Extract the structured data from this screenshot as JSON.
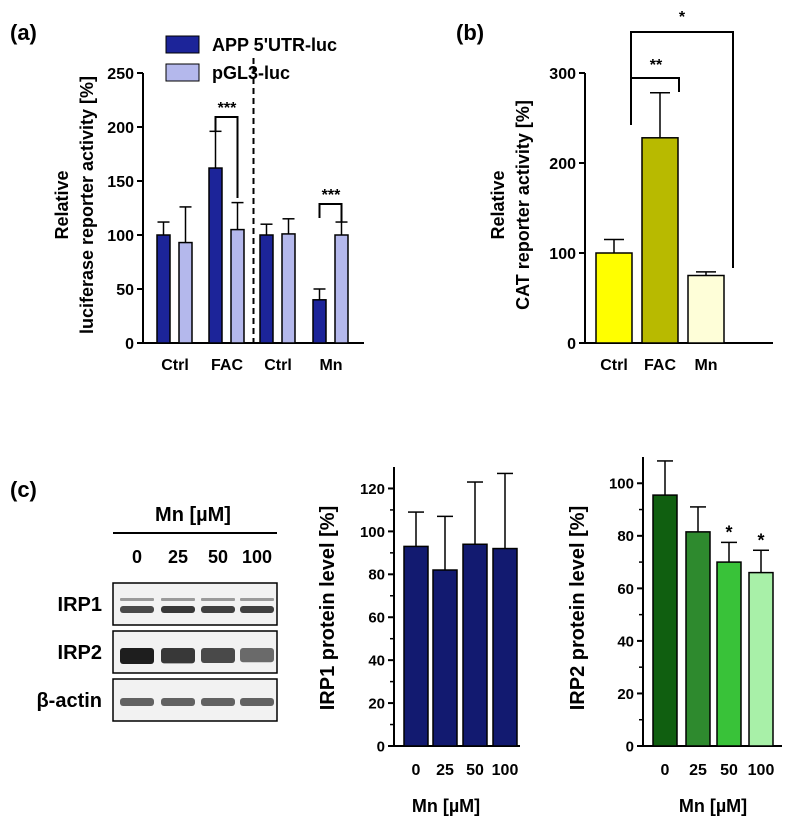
{
  "panel_labels": {
    "a": "(a)",
    "b": "(b)",
    "c": "(c)"
  },
  "colors": {
    "app": "#1c2499",
    "pgl3": "#b4b8ec",
    "ctrl_yellow": "#ffff00",
    "fac_olive": "#b8ba00",
    "mn_cream": "#fefed8",
    "irp1_navy": "#121a70",
    "irp2_greens": [
      "#105f10",
      "#2e8a2e",
      "#39c239",
      "#a8f0a8"
    ]
  },
  "western_blot": {
    "header": "Mn [µM]",
    "lanes": [
      "0",
      "25",
      "50",
      "100"
    ],
    "rows": [
      {
        "label": "IRP1",
        "intensity": [
          0.75,
          0.85,
          0.8,
          0.8
        ]
      },
      {
        "label": "IRP2",
        "intensity": [
          1.0,
          0.85,
          0.75,
          0.55
        ]
      },
      {
        "label": "β-actin",
        "intensity": [
          0.6,
          0.6,
          0.6,
          0.6
        ]
      }
    ]
  },
  "chart_data": [
    {
      "id": "a",
      "type": "bar",
      "ylabel_line1": "Relative",
      "ylabel_line2": "luciferase reporter activity [%]",
      "ylim": [
        0,
        250
      ],
      "yticks": [
        0,
        50,
        100,
        150,
        200,
        250
      ],
      "categories": [
        "Ctrl",
        "FAC",
        "Ctrl",
        "Mn"
      ],
      "legend_position": "top",
      "series": [
        {
          "name": "APP 5'UTR-luc",
          "values": [
            100,
            162,
            100,
            40
          ],
          "errors": [
            12,
            34,
            10,
            10
          ]
        },
        {
          "name": "pGL3-luc",
          "values": [
            93,
            105,
            101,
            100
          ],
          "errors": [
            33,
            25,
            14,
            12
          ]
        }
      ],
      "significance": [
        {
          "group": 1,
          "label": "***"
        },
        {
          "group": 3,
          "label": "***"
        }
      ],
      "divider_after_group": 1
    },
    {
      "id": "b",
      "type": "bar",
      "ylabel_line1": "Relative",
      "ylabel_line2": "CAT reporter activity [%]",
      "ylim": [
        0,
        300
      ],
      "yticks": [
        0,
        100,
        200,
        300
      ],
      "categories": [
        "Ctrl",
        "FAC",
        "Mn"
      ],
      "values": [
        100,
        228,
        75
      ],
      "errors": [
        15,
        50,
        4
      ],
      "significance": [
        {
          "from": 0,
          "to": 1,
          "label": "**"
        },
        {
          "from": 0,
          "to": 2,
          "label": "*"
        }
      ]
    },
    {
      "id": "c1",
      "type": "bar",
      "ylabel": "IRP1 protein level [%]",
      "xlabel": "Mn [µM]",
      "ylim": [
        0,
        130
      ],
      "yticks": [
        0,
        20,
        40,
        60,
        80,
        100,
        120
      ],
      "categories": [
        "0",
        "25",
        "50",
        "100"
      ],
      "values": [
        93,
        82,
        94,
        92
      ],
      "errors": [
        16,
        25,
        29,
        35
      ]
    },
    {
      "id": "c2",
      "type": "bar",
      "ylabel": "IRP2 protein level [%]",
      "xlabel": "Mn [µM]",
      "ylim": [
        0,
        110
      ],
      "yticks": [
        0,
        20,
        40,
        60,
        80,
        100
      ],
      "categories": [
        "0",
        "25",
        "50",
        "100"
      ],
      "values": [
        95.5,
        81.5,
        70,
        66
      ],
      "errors": [
        13,
        9.5,
        7.5,
        8.5
      ],
      "significance": [
        {
          "index": 2,
          "label": "*"
        },
        {
          "index": 3,
          "label": "*"
        }
      ]
    }
  ]
}
